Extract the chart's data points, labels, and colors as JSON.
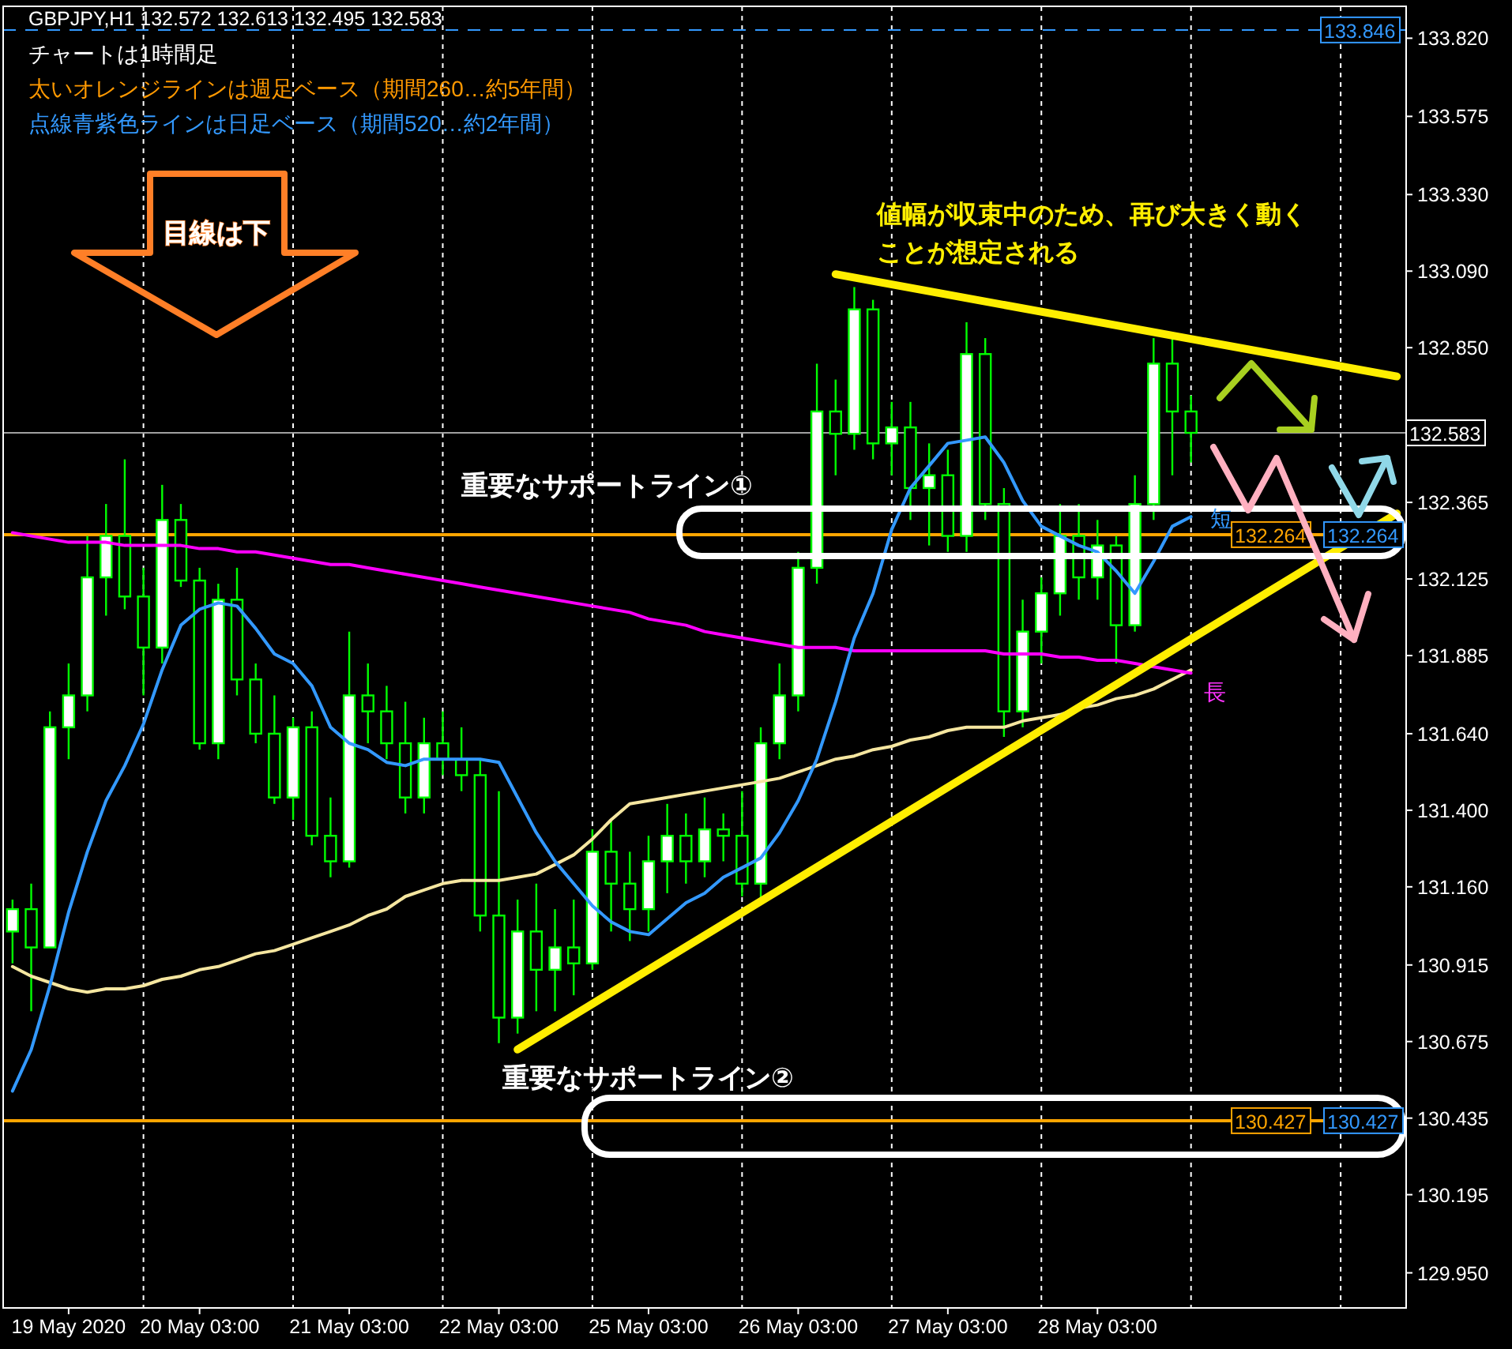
{
  "chart_data": {
    "type": "candlestick",
    "title": "GBPJPY,H1  132.572 132.613 132.495 132.583",
    "annotations": [
      "チャートは1時間足",
      "太いオレンジラインは週足ベース（期間260…約5年間）",
      "点線青紫色ラインは日足ベース（期間520…約2年間）",
      "目線は下",
      "値幅が収束中のため、再び大きく動く",
      "ことが想定される",
      "重要なサポートライン①",
      "重要なサポートライン②",
      "短",
      "長",
      {
        "text": "132.264",
        "y": 132.264
      },
      {
        "text": "130.427",
        "y": 130.427
      }
    ],
    "categories": [
      null,
      null,
      null,
      "19 May 2020",
      null,
      null,
      null,
      null,
      null,
      null,
      "20 May 03:00",
      null,
      null,
      null,
      null,
      null,
      null,
      null,
      "21 May 03:00",
      null,
      null,
      null,
      null,
      null,
      null,
      null,
      "22 May 03:00",
      null,
      null,
      null,
      null,
      null,
      null,
      null,
      "25 May 03:00",
      null,
      null,
      null,
      null,
      null,
      null,
      null,
      "26 May 03:00",
      null,
      null,
      null,
      null,
      null,
      null,
      null,
      "27 May 03:00",
      null,
      null,
      null,
      null,
      null,
      null,
      null,
      "28 May 03:00",
      null,
      null,
      null,
      null,
      null,
      null,
      null,
      null,
      null,
      null,
      null,
      null,
      null,
      null,
      null,
      null
    ],
    "series": [
      {
        "type": "line",
        "color": "#f5e6a0",
        "values": [
          130.91,
          130.88,
          130.86,
          130.84,
          130.83,
          130.84,
          130.84,
          130.85,
          130.87,
          130.88,
          130.9,
          130.91,
          130.93,
          130.95,
          130.96,
          130.98,
          131.0,
          131.02,
          131.04,
          131.07,
          131.09,
          131.13,
          131.15,
          131.17,
          131.18,
          131.18,
          131.18,
          131.19,
          131.2,
          131.23,
          131.26,
          131.31,
          131.37,
          131.42,
          131.43,
          131.44,
          131.45,
          131.46,
          131.47,
          131.48,
          131.49,
          131.5,
          131.52,
          131.54,
          131.56,
          131.57,
          131.59,
          131.6,
          131.62,
          131.63,
          131.65,
          131.66,
          131.66,
          131.66,
          131.68,
          131.69,
          131.7,
          131.72,
          131.73,
          131.75,
          131.76,
          131.78,
          131.81,
          131.84,
          null,
          null,
          null,
          null,
          null,
          null,
          null,
          null,
          null,
          null,
          null
        ]
      },
      {
        "type": "line",
        "color": "#ff00ff",
        "values": [
          132.27,
          132.26,
          132.25,
          132.24,
          132.24,
          132.24,
          132.23,
          132.23,
          132.23,
          132.23,
          132.22,
          132.22,
          132.21,
          132.21,
          132.2,
          132.19,
          132.18,
          132.17,
          132.17,
          132.16,
          132.15,
          132.14,
          132.13,
          132.12,
          132.11,
          132.1,
          132.09,
          132.08,
          132.07,
          132.06,
          132.05,
          132.04,
          132.03,
          132.02,
          132.0,
          131.99,
          131.98,
          131.96,
          131.95,
          131.94,
          131.93,
          131.92,
          131.91,
          131.91,
          131.91,
          131.9,
          131.9,
          131.9,
          131.9,
          131.9,
          131.9,
          131.9,
          131.9,
          131.89,
          131.89,
          131.89,
          131.88,
          131.88,
          131.87,
          131.87,
          131.86,
          131.85,
          131.84,
          131.83,
          null,
          null,
          null,
          null,
          null,
          null,
          null,
          null,
          null,
          null,
          null
        ]
      },
      {
        "type": "line",
        "color": "#3399ff",
        "values": [
          130.52,
          130.65,
          130.85,
          131.08,
          131.27,
          131.43,
          131.54,
          131.67,
          131.84,
          131.98,
          132.03,
          132.05,
          132.04,
          131.97,
          131.89,
          131.86,
          131.79,
          131.66,
          131.61,
          131.59,
          131.55,
          131.54,
          131.56,
          131.56,
          131.56,
          131.56,
          131.55,
          131.44,
          131.33,
          131.24,
          131.17,
          131.1,
          131.05,
          131.02,
          131.01,
          131.06,
          131.11,
          131.14,
          131.19,
          131.22,
          131.25,
          131.33,
          131.43,
          131.56,
          131.74,
          131.94,
          132.08,
          132.28,
          132.41,
          132.48,
          132.55,
          132.56,
          132.57,
          132.49,
          132.37,
          132.29,
          132.26,
          132.23,
          132.21,
          132.15,
          132.08,
          132.18,
          132.29,
          132.32,
          null,
          null,
          null,
          null,
          null,
          null,
          null,
          null,
          null,
          null,
          null
        ]
      },
      {
        "type": "candlestick",
        "color": "#00ff00",
        "ohlc": [
          [
            131.02,
            131.12,
            130.92,
            131.09
          ],
          [
            131.09,
            131.17,
            130.77,
            130.97
          ],
          [
            130.97,
            131.71,
            130.97,
            131.66
          ],
          [
            131.66,
            131.86,
            131.56,
            131.76
          ],
          [
            131.76,
            132.26,
            131.71,
            132.13
          ],
          [
            132.13,
            132.36,
            132.01,
            132.26
          ],
          [
            132.26,
            132.5,
            132.03,
            132.07
          ],
          [
            132.07,
            132.16,
            131.76,
            131.91
          ],
          [
            131.91,
            132.42,
            131.86,
            132.31
          ],
          [
            132.31,
            132.36,
            132.1,
            132.12
          ],
          [
            132.12,
            132.16,
            131.59,
            131.61
          ],
          [
            131.61,
            132.11,
            131.56,
            132.06
          ],
          [
            132.06,
            132.16,
            131.76,
            131.81
          ],
          [
            131.81,
            131.86,
            131.61,
            131.64
          ],
          [
            131.64,
            131.76,
            131.42,
            131.44
          ],
          [
            131.44,
            131.69,
            131.37,
            131.66
          ],
          [
            131.66,
            131.71,
            131.29,
            131.32
          ],
          [
            131.32,
            131.44,
            131.19,
            131.24
          ],
          [
            131.24,
            131.96,
            131.22,
            131.76
          ],
          [
            131.76,
            131.86,
            131.61,
            131.71
          ],
          [
            131.71,
            131.79,
            131.56,
            131.61
          ],
          [
            131.61,
            131.74,
            131.39,
            131.44
          ],
          [
            131.44,
            131.69,
            131.39,
            131.61
          ],
          [
            131.61,
            131.71,
            131.51,
            131.56
          ],
          [
            131.56,
            131.66,
            131.46,
            131.51
          ],
          [
            131.51,
            131.56,
            131.02,
            131.07
          ],
          [
            131.07,
            131.46,
            130.67,
            130.75
          ],
          [
            130.75,
            131.12,
            130.7,
            131.02
          ],
          [
            131.02,
            131.17,
            130.77,
            130.9
          ],
          [
            130.9,
            131.09,
            130.77,
            130.97
          ],
          [
            130.97,
            131.12,
            130.82,
            130.92
          ],
          [
            130.92,
            131.34,
            130.9,
            131.27
          ],
          [
            131.27,
            131.37,
            131.02,
            131.17
          ],
          [
            131.17,
            131.27,
            130.99,
            131.09
          ],
          [
            131.09,
            131.32,
            131.02,
            131.24
          ],
          [
            131.24,
            131.42,
            131.14,
            131.32
          ],
          [
            131.32,
            131.39,
            131.17,
            131.24
          ],
          [
            131.24,
            131.44,
            131.19,
            131.34
          ],
          [
            131.34,
            131.39,
            131.24,
            131.32
          ],
          [
            131.32,
            131.46,
            131.13,
            131.17
          ],
          [
            131.17,
            131.66,
            131.12,
            131.61
          ],
          [
            131.61,
            131.86,
            131.56,
            131.76
          ],
          [
            131.76,
            132.21,
            131.71,
            132.16
          ],
          [
            132.16,
            132.8,
            132.11,
            132.65
          ],
          [
            132.65,
            132.75,
            132.45,
            132.58
          ],
          [
            132.58,
            133.04,
            132.53,
            132.97
          ],
          [
            132.97,
            133.0,
            132.5,
            132.55
          ],
          [
            132.55,
            132.68,
            132.45,
            132.6
          ],
          [
            132.6,
            132.68,
            132.31,
            132.41
          ],
          [
            132.41,
            132.55,
            132.23,
            132.45
          ],
          [
            132.45,
            132.53,
            132.21,
            132.26
          ],
          [
            132.26,
            132.93,
            132.21,
            132.83
          ],
          [
            132.83,
            132.88,
            132.31,
            132.36
          ],
          [
            132.36,
            132.41,
            131.63,
            131.71
          ],
          [
            131.71,
            132.06,
            131.66,
            131.96
          ],
          [
            131.96,
            132.13,
            131.86,
            132.08
          ],
          [
            132.08,
            132.36,
            132.01,
            132.26
          ],
          [
            132.26,
            132.36,
            132.06,
            132.13
          ],
          [
            132.13,
            132.31,
            132.06,
            132.23
          ],
          [
            132.23,
            132.26,
            131.86,
            131.98
          ],
          [
            131.98,
            132.45,
            131.96,
            132.36
          ],
          [
            132.36,
            132.88,
            132.31,
            132.8
          ],
          [
            132.8,
            132.89,
            132.45,
            132.65
          ],
          [
            132.65,
            132.7,
            132.49,
            132.583
          ],
          null,
          null,
          null,
          null,
          null,
          null,
          null,
          null,
          null,
          null,
          null
        ]
      },
      {
        "type": "line",
        "color": "#ffee00",
        "values": [
          null,
          null,
          null,
          null,
          null,
          null,
          null,
          null,
          null,
          null,
          null,
          null,
          null,
          null,
          null,
          null,
          null,
          null,
          null,
          null,
          null,
          null,
          null,
          null,
          null,
          null,
          null,
          null,
          null,
          null,
          null,
          null,
          null,
          null,
          null,
          null,
          null,
          null,
          null,
          null,
          null,
          null,
          null,
          null,
          133.08,
          null,
          null,
          null,
          null,
          null,
          null,
          null,
          null,
          null,
          null,
          null,
          null,
          null,
          null,
          null,
          null,
          null,
          null,
          null,
          null,
          null,
          null,
          null,
          null,
          null,
          null,
          null,
          null,
          null,
          132.76
        ]
      },
      {
        "type": "line",
        "color": "#ffee00",
        "values": [
          null,
          null,
          null,
          null,
          null,
          null,
          null,
          null,
          null,
          null,
          null,
          null,
          null,
          null,
          null,
          null,
          null,
          null,
          null,
          null,
          null,
          null,
          null,
          null,
          null,
          null,
          null,
          130.65,
          null,
          null,
          null,
          null,
          null,
          null,
          null,
          null,
          null,
          null,
          null,
          null,
          null,
          null,
          null,
          null,
          null,
          null,
          null,
          null,
          null,
          null,
          null,
          null,
          null,
          null,
          null,
          null,
          null,
          null,
          null,
          null,
          null,
          null,
          null,
          null,
          null,
          null,
          null,
          null,
          null,
          null,
          null,
          null,
          null,
          null,
          132.33
        ]
      }
    ],
    "ylim": [
      129.84,
      133.92
    ],
    "yticks": [
      {
        "value": 133.82,
        "label": "133.820"
      },
      {
        "value": 133.575,
        "label": "133.575"
      },
      {
        "value": 133.33,
        "label": "133.330"
      },
      {
        "value": 133.09,
        "label": "133.090"
      },
      {
        "value": 132.85,
        "label": "132.850"
      },
      {
        "value": 132.365,
        "label": "132.365"
      },
      {
        "value": 132.125,
        "label": "132.125"
      },
      {
        "value": 131.885,
        "label": "131.885"
      },
      {
        "value": 131.64,
        "label": "131.640"
      },
      {
        "value": 131.4,
        "label": "131.400"
      },
      {
        "value": 131.16,
        "label": "131.160"
      },
      {
        "value": 130.915,
        "label": "130.915"
      },
      {
        "value": 130.675,
        "label": "130.675"
      },
      {
        "value": 130.435,
        "label": "130.435"
      },
      {
        "value": 130.195,
        "label": "130.195"
      },
      {
        "value": 129.95,
        "label": "129.950"
      }
    ],
    "ref_lines": [
      {
        "axis": "y",
        "value": 133.846,
        "label": "133.846",
        "color": "#3399ff",
        "line_style": "dashed"
      },
      {
        "axis": "y",
        "value": 132.264,
        "label": "132.264",
        "color": "#ffa500",
        "line_style": "solid"
      },
      {
        "axis": "y",
        "value": 130.427,
        "label": "130.427",
        "color": "#ffa500",
        "line_style": "solid"
      },
      {
        "axis": "y",
        "value": 132.583,
        "label": "132.583",
        "color": "#a0a0a0",
        "line_style": "solid"
      }
    ],
    "grid": "x"
  }
}
